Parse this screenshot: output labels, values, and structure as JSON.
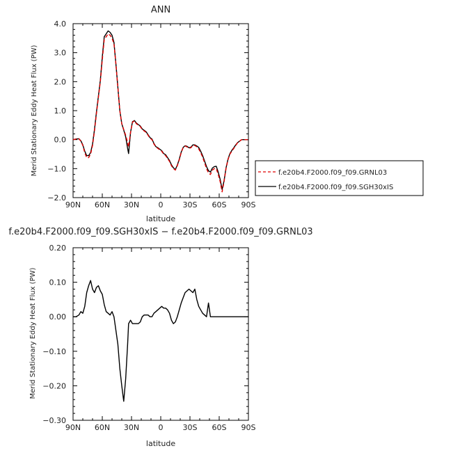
{
  "chart_data": [
    {
      "type": "line",
      "title": "ANN",
      "xlabel": "",
      "ylabel": "Merid Stationary Eddy Heat Flux (PW)",
      "xlim": [
        90,
        -90
      ],
      "ylim": [
        -2.0,
        4.0
      ],
      "x_ticks": [
        90,
        60,
        30,
        0,
        -30,
        -60,
        -90
      ],
      "x_tick_labels": [
        "90N",
        "60N",
        "30N",
        "0",
        "30S",
        "60S",
        "90S"
      ],
      "y_ticks": [
        -2.0,
        -1.0,
        0.0,
        1.0,
        2.0,
        3.0,
        4.0
      ],
      "y_tick_labels": [
        "−2.0",
        "−1.0",
        "0.0",
        "1.0",
        "2.0",
        "3.0",
        "4.0"
      ],
      "legend_position": "right",
      "series": [
        {
          "name": "f.e20b4.F2000.f09_f09.GRNL03",
          "color": "#e00000",
          "dash": "dashed",
          "x": [
            90,
            87,
            84,
            82,
            80,
            78,
            76,
            74,
            72,
            70,
            68,
            66,
            64,
            62,
            60,
            58,
            56,
            54,
            52,
            50,
            48,
            46,
            44,
            42,
            40,
            38,
            36,
            34,
            33,
            31,
            29,
            27,
            25,
            23,
            21,
            19,
            17,
            15,
            13,
            11,
            9,
            7,
            5,
            3,
            1,
            -1,
            -3,
            -5,
            -7,
            -9,
            -11,
            -13,
            -15,
            -17,
            -19,
            -21,
            -23,
            -25,
            -27,
            -29,
            -31,
            -33,
            -35,
            -37,
            -39,
            -41,
            -43,
            -45,
            -47,
            -49,
            -51,
            -53,
            -55,
            -57,
            -59,
            -61,
            -63,
            -65,
            -67,
            -69,
            -71,
            -73,
            -75,
            -77,
            -79,
            -81,
            -83,
            -85,
            -87,
            -89,
            -90
          ],
          "y": [
            0.0,
            0.02,
            0.03,
            -0.05,
            -0.2,
            -0.45,
            -0.62,
            -0.62,
            -0.5,
            -0.2,
            0.3,
            0.9,
            1.45,
            2.0,
            2.75,
            3.45,
            3.55,
            3.65,
            3.6,
            3.5,
            3.3,
            2.6,
            1.8,
            1.0,
            0.55,
            0.35,
            0.15,
            -0.1,
            -0.25,
            0.25,
            0.6,
            0.65,
            0.55,
            0.5,
            0.45,
            0.35,
            0.3,
            0.25,
            0.15,
            0.05,
            0.0,
            -0.15,
            -0.25,
            -0.3,
            -0.35,
            -0.4,
            -0.5,
            -0.55,
            -0.65,
            -0.75,
            -0.9,
            -1.0,
            -1.05,
            -0.9,
            -0.7,
            -0.45,
            -0.28,
            -0.22,
            -0.25,
            -0.3,
            -0.28,
            -0.2,
            -0.2,
            -0.25,
            -0.32,
            -0.45,
            -0.6,
            -0.8,
            -1.0,
            -1.15,
            -1.2,
            -1.05,
            -1.0,
            -1.0,
            -1.2,
            -1.45,
            -1.8,
            -1.45,
            -1.0,
            -0.7,
            -0.5,
            -0.4,
            -0.3,
            -0.2,
            -0.1,
            -0.05,
            0.0,
            0.0,
            0.0,
            0.0,
            0.0
          ]
        },
        {
          "name": "f.e20b4.F2000.f09_f09.SGH30xIS",
          "color": "#000000",
          "dash": "solid",
          "x": [
            90,
            87,
            84,
            82,
            80,
            78,
            76,
            74,
            72,
            70,
            68,
            66,
            64,
            62,
            60,
            58,
            56,
            54,
            52,
            50,
            48,
            46,
            44,
            42,
            40,
            38,
            36,
            34,
            33,
            31,
            29,
            27,
            25,
            23,
            21,
            19,
            17,
            15,
            13,
            11,
            9,
            7,
            5,
            3,
            1,
            -1,
            -3,
            -5,
            -7,
            -9,
            -11,
            -13,
            -15,
            -17,
            -19,
            -21,
            -23,
            -25,
            -27,
            -29,
            -31,
            -33,
            -35,
            -37,
            -39,
            -41,
            -43,
            -45,
            -47,
            -49,
            -51,
            -53,
            -55,
            -57,
            -59,
            -61,
            -63,
            -65,
            -67,
            -69,
            -71,
            -73,
            -75,
            -77,
            -79,
            -81,
            -83,
            -85,
            -87,
            -89,
            -90
          ],
          "y": [
            0.0,
            0.02,
            0.03,
            -0.04,
            -0.18,
            -0.4,
            -0.55,
            -0.55,
            -0.45,
            -0.15,
            0.35,
            0.95,
            1.5,
            2.05,
            2.85,
            3.55,
            3.65,
            3.75,
            3.7,
            3.6,
            3.35,
            2.6,
            1.8,
            1.0,
            0.55,
            0.33,
            0.1,
            -0.3,
            -0.48,
            0.25,
            0.62,
            0.66,
            0.57,
            0.52,
            0.47,
            0.37,
            0.32,
            0.27,
            0.17,
            0.07,
            0.02,
            -0.13,
            -0.24,
            -0.28,
            -0.33,
            -0.38,
            -0.48,
            -0.52,
            -0.62,
            -0.72,
            -0.87,
            -0.97,
            -1.03,
            -0.88,
            -0.68,
            -0.43,
            -0.27,
            -0.21,
            -0.23,
            -0.28,
            -0.26,
            -0.18,
            -0.18,
            -0.22,
            -0.27,
            -0.4,
            -0.55,
            -0.74,
            -0.93,
            -1.07,
            -1.12,
            -0.98,
            -0.93,
            -0.92,
            -1.12,
            -1.37,
            -1.72,
            -1.42,
            -0.98,
            -0.68,
            -0.48,
            -0.37,
            -0.28,
            -0.18,
            -0.1,
            -0.05,
            0.0,
            0.0,
            0.0,
            0.0,
            0.0
          ]
        }
      ]
    },
    {
      "type": "line",
      "title": "f.e20b4.F2000.f09_f09.SGH30xIS − f.e20b4.F2000.f09_f09.GRNL03",
      "xlabel": "latitude",
      "ylabel": "Merid Stationary Eddy Heat Flux (PW)",
      "xlim": [
        90,
        -90
      ],
      "ylim": [
        -0.3,
        0.2
      ],
      "x_ticks": [
        90,
        60,
        30,
        0,
        -30,
        -60,
        -90
      ],
      "x_tick_labels": [
        "90N",
        "60N",
        "30N",
        "0",
        "30S",
        "60S",
        "90S"
      ],
      "y_ticks": [
        -0.3,
        -0.2,
        -0.1,
        0.0,
        0.1,
        0.2
      ],
      "y_tick_labels": [
        "−0.30",
        "−0.20",
        "−0.10",
        "0.00",
        "0.10",
        "0.20"
      ],
      "series": [
        {
          "name": "",
          "color": "#000000",
          "dash": "solid",
          "x": [
            90,
            87,
            84,
            82,
            80,
            78,
            76,
            74,
            72,
            70,
            68,
            66,
            64,
            62,
            60,
            58,
            56,
            54,
            52,
            50,
            48,
            46,
            44,
            42,
            40,
            38,
            36,
            34,
            33,
            31,
            29,
            27,
            25,
            23,
            21,
            19,
            17,
            15,
            13,
            11,
            9,
            7,
            5,
            3,
            1,
            -1,
            -3,
            -5,
            -7,
            -9,
            -11,
            -13,
            -15,
            -17,
            -19,
            -21,
            -23,
            -25,
            -27,
            -29,
            -31,
            -33,
            -35,
            -37,
            -39,
            -41,
            -43,
            -45,
            -47,
            -49,
            -51,
            -53,
            -55,
            -57,
            -59,
            -61,
            -63,
            -65,
            -67,
            -69,
            -71,
            -73,
            -75,
            -77,
            -79,
            -81,
            -83,
            -85,
            -87,
            -89,
            -90
          ],
          "y": [
            0.0,
            0.0,
            0.005,
            0.015,
            0.01,
            0.03,
            0.07,
            0.09,
            0.105,
            0.08,
            0.07,
            0.085,
            0.09,
            0.075,
            0.065,
            0.035,
            0.015,
            0.01,
            0.005,
            0.015,
            0.0,
            -0.04,
            -0.08,
            -0.15,
            -0.2,
            -0.245,
            -0.18,
            -0.08,
            -0.02,
            -0.01,
            -0.02,
            -0.02,
            -0.02,
            -0.02,
            -0.015,
            0.0,
            0.005,
            0.005,
            0.005,
            0.0,
            0.0,
            0.01,
            0.015,
            0.02,
            0.025,
            0.03,
            0.025,
            0.025,
            0.02,
            0.01,
            -0.01,
            -0.02,
            -0.015,
            0.0,
            0.02,
            0.04,
            0.055,
            0.07,
            0.075,
            0.08,
            0.075,
            0.07,
            0.08,
            0.05,
            0.03,
            0.02,
            0.01,
            0.005,
            0.0,
            0.04,
            0.0,
            0.0,
            0.0,
            0.0,
            0.0,
            0.0,
            0.0,
            0.0,
            0.0,
            0.0,
            0.0,
            0.0,
            0.0,
            0.0,
            0.0,
            0.0,
            0.0,
            0.0,
            0.0,
            0.0,
            0.0
          ]
        }
      ]
    }
  ]
}
